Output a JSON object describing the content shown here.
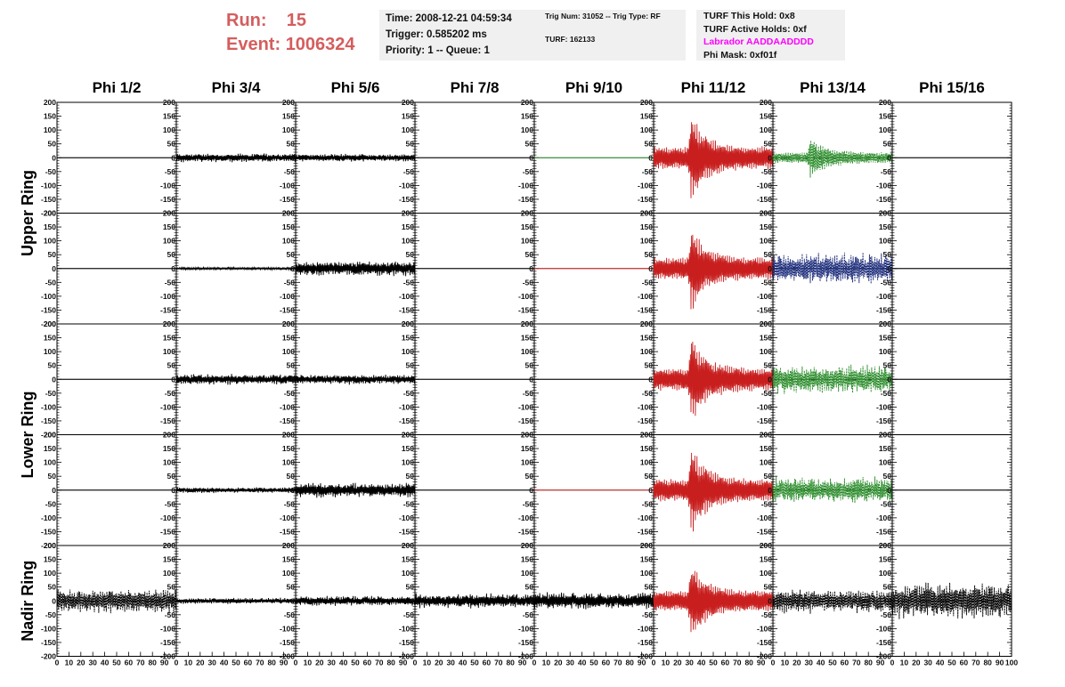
{
  "header": {
    "run_label": "Run:",
    "run_value": "15",
    "event_label": "Event:",
    "event_value": "1006324",
    "time": "Time: 2008-12-21 04:59:34",
    "trigger": "Trigger: 0.585202 ms",
    "priority": "Priority: 1 -- Queue: 1",
    "trig_num": "Trig Num: 31052 -- Trig Type: RF",
    "turf": "TURF: 162133",
    "turf_this_hold": "TURF This Hold: 0x8",
    "turf_active_holds": "TURF Active Holds: 0xf",
    "labrador": "Labrador AADDAADDDD",
    "phi_mask": "Phi Mask: 0xf01f"
  },
  "colors": {
    "run_text": "#d55d5d",
    "labrador_text": "#ff00ff",
    "black_trace": "#000000",
    "red_trace": "#c81e1e",
    "green_trace": "#2a8c2a",
    "blue_trace": "#1a2a7a"
  },
  "chart_data": {
    "type": "line",
    "columns": [
      "Phi 1/2",
      "Phi 3/4",
      "Phi 5/6",
      "Phi 7/8",
      "Phi 9/10",
      "Phi 11/12",
      "Phi 13/14",
      "Phi 15/16"
    ],
    "ring_labels": [
      "Upper Ring",
      "Lower Ring",
      "Nadir Ring"
    ],
    "rows": 5,
    "ylim": [
      -200,
      200
    ],
    "xlim": [
      0,
      100
    ],
    "y_ticks": [
      200,
      150,
      100,
      50,
      0,
      -50,
      -100,
      -150,
      -200
    ],
    "x_ticks": [
      0,
      10,
      20,
      30,
      40,
      50,
      60,
      70,
      80,
      90,
      100
    ],
    "panels": [
      [
        {
          "c": "flat"
        },
        {
          "c": "black",
          "a": 18
        },
        {
          "c": "black",
          "a": 16
        },
        {
          "c": "flat"
        },
        {
          "c": "flatgreen"
        },
        {
          "c": "red",
          "a": 165,
          "pulse": 1
        },
        {
          "c": "green",
          "a": 80,
          "pulse": 1,
          "dash": 1
        },
        {
          "c": "flat"
        }
      ],
      [
        {
          "c": "flat"
        },
        {
          "c": "black",
          "a": 5
        },
        {
          "c": "black",
          "a": 30
        },
        {
          "c": "flat"
        },
        {
          "c": "flatred"
        },
        {
          "c": "red",
          "a": 160,
          "pulse": 1
        },
        {
          "c": "blue",
          "a": 65,
          "dash": 1
        },
        {
          "c": "flat"
        }
      ],
      [
        {
          "c": "flat"
        },
        {
          "c": "black",
          "a": 22
        },
        {
          "c": "black",
          "a": 20
        },
        {
          "c": "flat"
        },
        {
          "c": "flat"
        },
        {
          "c": "red",
          "a": 165,
          "pulse": 1
        },
        {
          "c": "green",
          "a": 60,
          "dash": 1
        },
        {
          "c": "flat"
        }
      ],
      [
        {
          "c": "flat"
        },
        {
          "c": "black",
          "a": 12
        },
        {
          "c": "black",
          "a": 30
        },
        {
          "c": "flat"
        },
        {
          "c": "flatred"
        },
        {
          "c": "red",
          "a": 165,
          "pulse": 1
        },
        {
          "c": "green",
          "a": 55,
          "dash": 1
        },
        {
          "c": "flat"
        }
      ],
      [
        {
          "c": "black",
          "a": 50,
          "dash": 1
        },
        {
          "c": "black",
          "a": 12
        },
        {
          "c": "black",
          "a": 20
        },
        {
          "c": "black",
          "a": 30
        },
        {
          "c": "black",
          "a": 35
        },
        {
          "c": "red",
          "a": 150,
          "pulse": 1
        },
        {
          "c": "black",
          "a": 50,
          "dash": 1
        },
        {
          "c": "black",
          "a": 75,
          "dash": 1
        }
      ]
    ]
  }
}
